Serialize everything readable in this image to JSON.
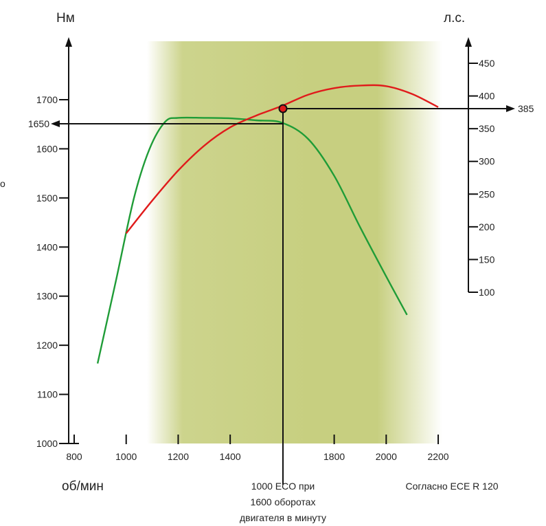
{
  "chart_data": {
    "type": "line",
    "left_axis": {
      "unit": "Нм",
      "range": [
        1000,
        1780
      ],
      "ticks": [
        1000,
        1100,
        1200,
        1300,
        1400,
        1500,
        1600,
        1700
      ]
    },
    "right_axis": {
      "unit": "л.с.",
      "range": [
        100,
        450
      ],
      "ticks": [
        100,
        150,
        200,
        250,
        300,
        350,
        400,
        450
      ]
    },
    "x_axis": {
      "unit": "об/мин",
      "range": [
        800,
        2200
      ],
      "ticks": [
        800,
        1000,
        1200,
        1400,
        1800,
        2000,
        2200
      ]
    },
    "highlight_band": {
      "from": 1080,
      "to": 2200,
      "color": "#c7cf80"
    },
    "series": [
      {
        "axis": "left",
        "color": "#1f9c37",
        "points": [
          [
            890,
            1163
          ],
          [
            960,
            1330
          ],
          [
            1030,
            1500
          ],
          [
            1090,
            1600
          ],
          [
            1150,
            1655
          ],
          [
            1200,
            1663
          ],
          [
            1300,
            1663
          ],
          [
            1400,
            1662
          ],
          [
            1500,
            1658
          ],
          [
            1600,
            1653
          ],
          [
            1700,
            1620
          ],
          [
            1800,
            1545
          ],
          [
            1900,
            1440
          ],
          [
            2000,
            1340
          ],
          [
            2080,
            1262
          ]
        ]
      },
      {
        "axis": "right",
        "color": "#e01b1b",
        "points": [
          [
            1000,
            190
          ],
          [
            1100,
            240
          ],
          [
            1200,
            286
          ],
          [
            1300,
            324
          ],
          [
            1400,
            352
          ],
          [
            1500,
            370
          ],
          [
            1600,
            385
          ],
          [
            1700,
            402
          ],
          [
            1800,
            412
          ],
          [
            1900,
            416
          ],
          [
            2000,
            415
          ],
          [
            2100,
            403
          ],
          [
            2200,
            383
          ]
        ]
      }
    ],
    "marker": {
      "rpm": 1600,
      "torque": 1650,
      "power": 385,
      "torque_label": "1650",
      "power_label": "385"
    },
    "notes": {
      "eco": [
        "1000 ECO при",
        "1600 оборотах",
        "двигателя в минуту"
      ],
      "standard": "Согласно ECE R 120"
    },
    "edge_glyph": "о"
  }
}
